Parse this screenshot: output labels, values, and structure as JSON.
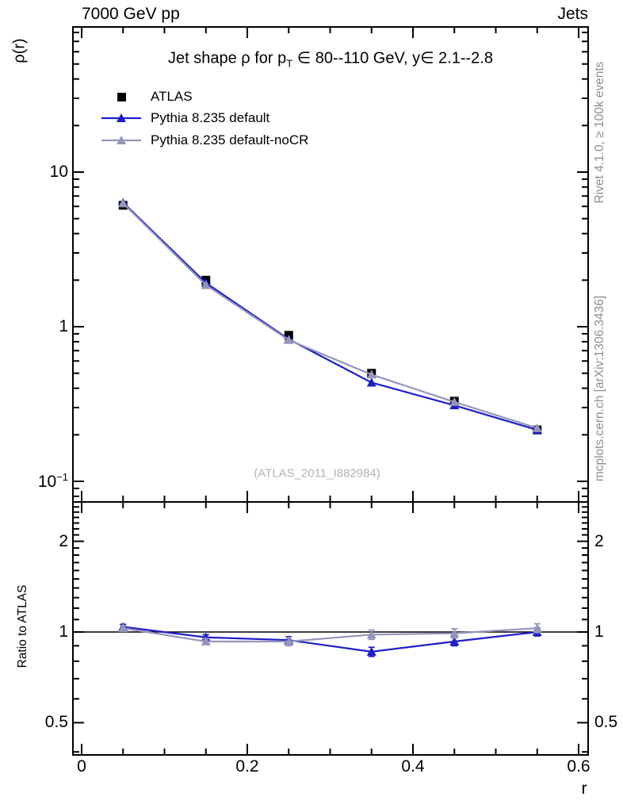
{
  "header": {
    "left": "7000 GeV pp",
    "right": "Jets"
  },
  "side_notes": {
    "top_right": "Rivet 4.1.0, ≥ 100k events",
    "bottom_right": "mcplots.cern.ch [arXiv:1306.3436]"
  },
  "watermark": "(ATLAS_2011_I882984)",
  "colors": {
    "atlas": "#000000",
    "pythia_default": "#1e1ec8",
    "pythia_nocr": "#9696bc",
    "gray_text": "#8e8e8e",
    "watermark": "#b3b3b3"
  },
  "legend": [
    {
      "label": "ATLAS",
      "marker": "square",
      "color": "#000000",
      "line": false
    },
    {
      "label": "Pythia 8.235 default",
      "marker": "triangle",
      "color": "#1e1ec8",
      "line": true
    },
    {
      "label": "Pythia 8.235 default-noCR",
      "marker": "triangle",
      "color": "#9696bc",
      "line": true
    }
  ],
  "chart_data": [
    {
      "type": "line",
      "panel": "main",
      "title_parts": {
        "pre": "Jet shape ρ for p",
        "sub": "T",
        "post": " ∈ 80--110 GeV, y∈ 2.1--2.8"
      },
      "ylabel": "ρ(r)",
      "yscale": "log",
      "ylim": [
        0.074,
        87
      ],
      "xlim": [
        0,
        0.6
      ],
      "grid": false,
      "legend_position": "top-left-inside",
      "x": [
        0.05,
        0.15,
        0.25,
        0.35,
        0.45,
        0.55
      ],
      "series": [
        {
          "name": "ATLAS",
          "marker": "square",
          "color": "#000000",
          "line": false,
          "values": [
            6.1,
            2.0,
            0.88,
            0.5,
            0.33,
            0.215
          ]
        },
        {
          "name": "Pythia 8.235 default",
          "marker": "triangle",
          "color": "#1e1ec8",
          "line": true,
          "values": [
            6.35,
            1.92,
            0.83,
            0.435,
            0.31,
            0.215
          ]
        },
        {
          "name": "Pythia 8.235 default-noCR",
          "marker": "triangle",
          "color": "#9696bc",
          "line": true,
          "values": [
            6.28,
            1.86,
            0.82,
            0.49,
            0.326,
            0.221
          ]
        }
      ],
      "yticks": [
        {
          "v": 10,
          "label": "10"
        },
        {
          "v": 1,
          "label": "1"
        },
        {
          "v": 0.1,
          "label": "10^−1"
        }
      ]
    },
    {
      "type": "line",
      "panel": "ratio",
      "ylabel": "Ratio to ATLAS",
      "xlabel": "r",
      "yscale": "log",
      "ylim": [
        0.39,
        2.7
      ],
      "xlim": [
        0,
        0.6
      ],
      "reference_line": 1,
      "x": [
        0.05,
        0.15,
        0.25,
        0.35,
        0.45,
        0.55
      ],
      "series": [
        {
          "name": "Pythia 8.235 default",
          "marker": "triangle",
          "color": "#1e1ec8",
          "line": true,
          "values": [
            1.04,
            0.96,
            0.94,
            0.86,
            0.93,
            1.0
          ],
          "errors": [
            0.02,
            0.02,
            0.025,
            0.03,
            0.03,
            0.03
          ]
        },
        {
          "name": "Pythia 8.235 default-noCR",
          "marker": "triangle",
          "color": "#9696bc",
          "line": true,
          "values": [
            1.03,
            0.93,
            0.93,
            0.98,
            0.99,
            1.03
          ],
          "errors": [
            0.02,
            0.02,
            0.03,
            0.035,
            0.035,
            0.035
          ]
        }
      ],
      "yticks": [
        {
          "v": 2,
          "label": "2"
        },
        {
          "v": 1,
          "label": "1"
        },
        {
          "v": 0.5,
          "label": "0.5"
        }
      ],
      "xticks": [
        {
          "v": 0,
          "label": "0"
        },
        {
          "v": 0.2,
          "label": "0.2"
        },
        {
          "v": 0.4,
          "label": "0.4"
        },
        {
          "v": 0.6,
          "label": "0.6"
        }
      ]
    }
  ]
}
